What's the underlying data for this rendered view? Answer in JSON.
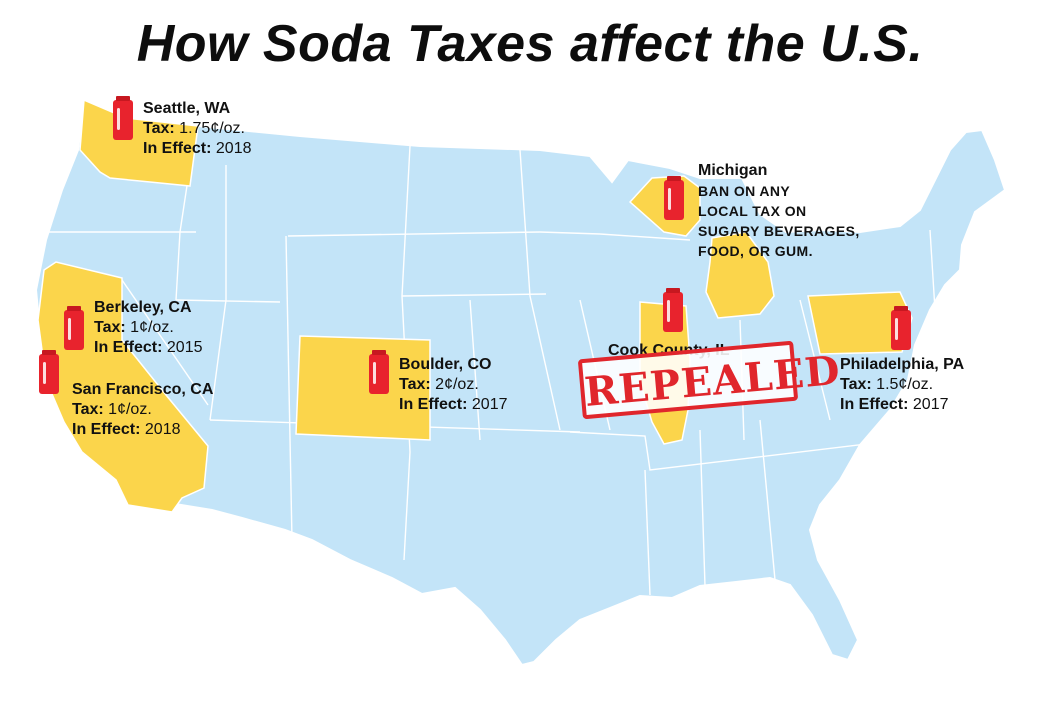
{
  "title": "How Soda Taxes affect the U.S.",
  "colors": {
    "land": "#c3e4f8",
    "highlight": "#fbd54b",
    "border": "#ffffff",
    "can": "#e8232d",
    "stamp": "#e0262c"
  },
  "icon": "soda-can-icon",
  "locations": [
    {
      "id": "seattle",
      "name": "Seattle, WA",
      "tax_label": "Tax:",
      "tax": "1.75¢/oz.",
      "effect_label": "In Effect:",
      "effect": "2018"
    },
    {
      "id": "michigan",
      "name": "Michigan",
      "note_lines": [
        "BAN ON ANY",
        "LOCAL TAX ON",
        "SUGARY BEVERAGES,",
        "FOOD, OR GUM."
      ]
    },
    {
      "id": "berkeley",
      "name": "Berkeley, CA",
      "tax_label": "Tax:",
      "tax": "1¢/oz.",
      "effect_label": "In Effect:",
      "effect": "2015"
    },
    {
      "id": "boulder",
      "name": "Boulder, CO",
      "tax_label": "Tax:",
      "tax": "2¢/oz.",
      "effect_label": "In Effect:",
      "effect": "2017"
    },
    {
      "id": "cook",
      "name": "Cook County, IL",
      "status": "REPEALED"
    },
    {
      "id": "philadelphia",
      "name": "Philadelphia, PA",
      "tax_label": "Tax:",
      "tax": "1.5¢/oz.",
      "effect_label": "In Effect:",
      "effect": "2017"
    },
    {
      "id": "sanfrancisco",
      "name": "San Francisco, CA",
      "tax_label": "Tax:",
      "tax": "1¢/oz.",
      "effect_label": "In Effect:",
      "effect": "2018"
    }
  ]
}
